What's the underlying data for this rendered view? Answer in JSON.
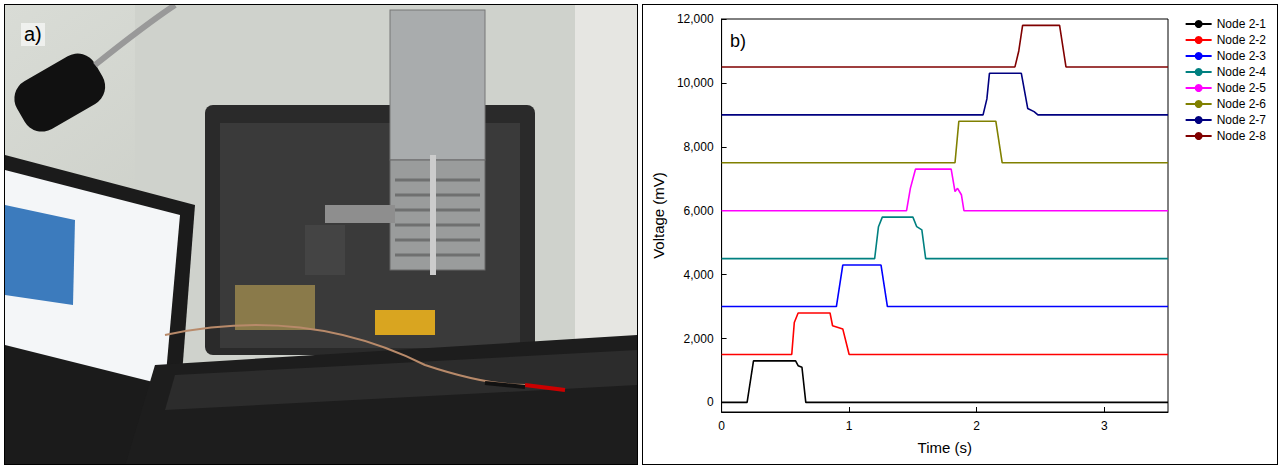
{
  "photo": {
    "label": "a)"
  },
  "chart_data": {
    "type": "line",
    "title": "b)",
    "x_label": "Time (s)",
    "y_label": "Voltage (mV)",
    "xlim": [
      0,
      3.5
    ],
    "xticks": [
      0,
      1,
      2,
      3
    ],
    "ylim": [
      -300,
      12000
    ],
    "yticks": [
      0,
      2000,
      4000,
      6000,
      8000,
      10000,
      12000
    ],
    "grid": false,
    "legend": "right",
    "series": [
      {
        "name": "Node 2-1",
        "color": "#000000",
        "x": [
          0,
          0.2,
          0.25,
          0.58,
          0.6,
          0.63,
          0.66,
          3.5
        ],
        "values": [
          0,
          0,
          1300,
          1300,
          1150,
          1100,
          0,
          0
        ]
      },
      {
        "name": "Node 2-2",
        "color": "#ff0000",
        "x": [
          0,
          0.55,
          0.57,
          0.6,
          0.85,
          0.87,
          0.95,
          1.0,
          3.5
        ],
        "values": [
          1500,
          1500,
          2500,
          2800,
          2800,
          2400,
          2300,
          1500,
          1500
        ]
      },
      {
        "name": "Node 2-3",
        "color": "#0000ff",
        "x": [
          0,
          0.9,
          0.95,
          1.25,
          1.3,
          3.5
        ],
        "values": [
          3000,
          3000,
          4300,
          4300,
          3000,
          3000
        ]
      },
      {
        "name": "Node 2-4",
        "color": "#008080",
        "x": [
          0,
          1.2,
          1.23,
          1.26,
          1.5,
          1.53,
          1.57,
          1.6,
          3.5
        ],
        "values": [
          4500,
          4500,
          5500,
          5800,
          5800,
          5500,
          5400,
          4500,
          4500
        ]
      },
      {
        "name": "Node 2-5",
        "color": "#ff00ff",
        "x": [
          0,
          1.45,
          1.48,
          1.52,
          1.8,
          1.83,
          1.85,
          1.88,
          1.9,
          3.5
        ],
        "values": [
          6000,
          6000,
          6700,
          7300,
          7300,
          6600,
          6700,
          6500,
          6000,
          6000
        ]
      },
      {
        "name": "Node 2-6",
        "color": "#808000",
        "x": [
          0,
          1.83,
          1.86,
          2.15,
          2.2,
          3.5
        ],
        "values": [
          7500,
          7500,
          8800,
          8800,
          7500,
          7500
        ]
      },
      {
        "name": "Node 2-7",
        "color": "#000080",
        "x": [
          0,
          2.05,
          2.08,
          2.1,
          2.35,
          2.4,
          2.45,
          2.48,
          3.5
        ],
        "values": [
          9000,
          9000,
          9500,
          10300,
          10300,
          9200,
          9100,
          9000,
          9000
        ]
      },
      {
        "name": "Node 2-8",
        "color": "#800000",
        "x": [
          0,
          2.3,
          2.33,
          2.36,
          2.65,
          2.7,
          3.5
        ],
        "values": [
          10500,
          10500,
          11000,
          11800,
          11800,
          10500,
          10500
        ]
      }
    ]
  }
}
